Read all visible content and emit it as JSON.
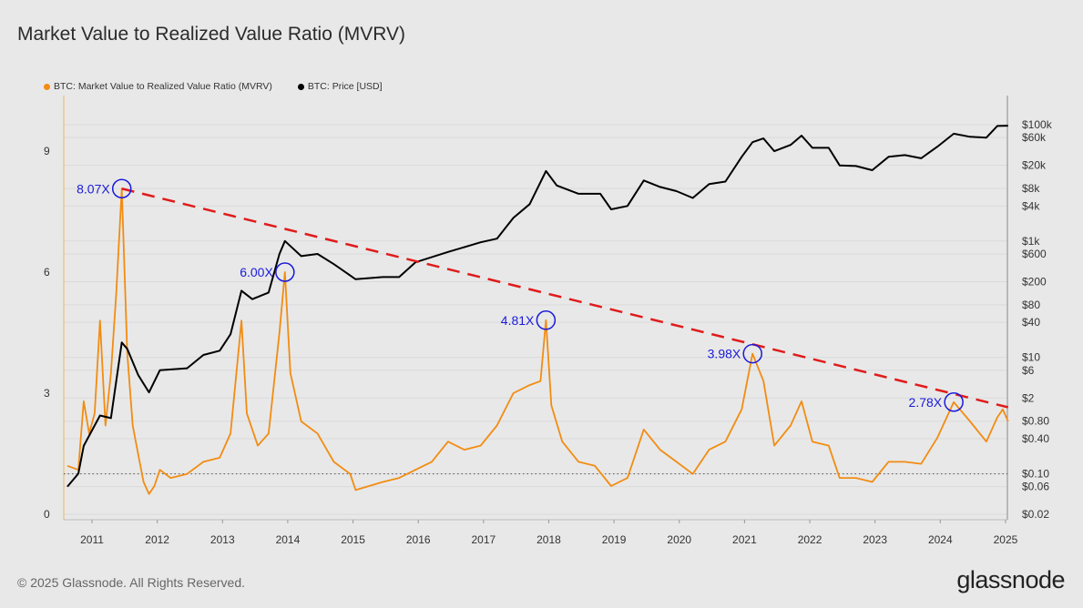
{
  "title": "Market Value to Realized Value Ratio (MVRV)",
  "footer": "© 2025 Glassnode. All Rights Reserved.",
  "logo": "glassnode",
  "chart_data": {
    "type": "line",
    "title": "Market Value to Realized Value Ratio (MVRV)",
    "legend_position": "top-left",
    "grid": true,
    "x_ticks": [
      "2011",
      "2012",
      "2013",
      "2014",
      "2015",
      "2016",
      "2017",
      "2018",
      "2019",
      "2020",
      "2021",
      "2022",
      "2023",
      "2024",
      "2025"
    ],
    "y_left": {
      "ticks": [
        0,
        3,
        6,
        9
      ],
      "range": [
        0,
        10.3
      ],
      "reference_line": 1
    },
    "y_right": {
      "scale": "log",
      "ticks": [
        "$0.02",
        "$0.06",
        "$0.10",
        "$0.40",
        "$0.80",
        "$2",
        "$6",
        "$10",
        "$40",
        "$80",
        "$200",
        "$600",
        "$1k",
        "$4k",
        "$8k",
        "$20k",
        "$60k",
        "$100k"
      ],
      "tick_values": [
        0.02,
        0.06,
        0.1,
        0.4,
        0.8,
        2,
        6,
        10,
        40,
        80,
        200,
        600,
        1000,
        4000,
        8000,
        20000,
        60000,
        100000
      ]
    },
    "series": [
      {
        "name": "BTC: Market Value to Realized Value Ratio (MVRV)",
        "color": "#f28c12",
        "axis": "left",
        "x": [
          "2010-08",
          "2010-10",
          "2010-11",
          "2010-12",
          "2011-01",
          "2011-02",
          "2011-03",
          "2011-04",
          "2011-05",
          "2011-06",
          "2011-07",
          "2011-08",
          "2011-09",
          "2011-10",
          "2011-11",
          "2011-12",
          "2012-01",
          "2012-03",
          "2012-06",
          "2012-09",
          "2012-12",
          "2013-02",
          "2013-04",
          "2013-05",
          "2013-07",
          "2013-09",
          "2013-11",
          "2013-12",
          "2014-01",
          "2014-03",
          "2014-06",
          "2014-09",
          "2014-12",
          "2015-01",
          "2015-06",
          "2015-09",
          "2015-12",
          "2016-03",
          "2016-06",
          "2016-09",
          "2016-12",
          "2017-03",
          "2017-06",
          "2017-09",
          "2017-11",
          "2017-12",
          "2018-01",
          "2018-03",
          "2018-06",
          "2018-09",
          "2018-12",
          "2019-03",
          "2019-06",
          "2019-09",
          "2019-12",
          "2020-03",
          "2020-06",
          "2020-09",
          "2020-12",
          "2021-02",
          "2021-04",
          "2021-06",
          "2021-09",
          "2021-11",
          "2022-01",
          "2022-04",
          "2022-06",
          "2022-09",
          "2022-12",
          "2023-03",
          "2023-06",
          "2023-09",
          "2023-12",
          "2024-03",
          "2024-06",
          "2024-09",
          "2024-11",
          "2024-12",
          "2025-01"
        ],
        "values": [
          1.2,
          1.1,
          2.8,
          2.0,
          2.5,
          4.8,
          2.2,
          3.5,
          5.5,
          8.07,
          4.0,
          2.2,
          1.5,
          0.8,
          0.5,
          0.7,
          1.1,
          0.9,
          1.0,
          1.3,
          1.4,
          2.0,
          4.8,
          2.5,
          1.7,
          2.0,
          4.5,
          6.0,
          3.5,
          2.3,
          2.0,
          1.3,
          1.0,
          0.6,
          0.8,
          0.9,
          1.1,
          1.3,
          1.8,
          1.6,
          1.7,
          2.2,
          3.0,
          3.2,
          3.3,
          4.81,
          2.7,
          1.8,
          1.3,
          1.2,
          0.7,
          0.9,
          2.1,
          1.6,
          1.3,
          1.0,
          1.6,
          1.8,
          2.6,
          3.98,
          3.3,
          1.7,
          2.2,
          2.8,
          1.8,
          1.7,
          0.9,
          0.9,
          0.8,
          1.3,
          1.3,
          1.25,
          1.9,
          2.78,
          2.3,
          1.8,
          2.4,
          2.6,
          2.3
        ]
      },
      {
        "name": "BTC: Price [USD]",
        "color": "#000000",
        "axis": "right",
        "x": [
          "2010-08",
          "2010-10",
          "2010-11",
          "2011-02",
          "2011-04",
          "2011-06",
          "2011-07",
          "2011-09",
          "2011-11",
          "2012-01",
          "2012-06",
          "2012-09",
          "2012-12",
          "2013-02",
          "2013-04",
          "2013-06",
          "2013-09",
          "2013-11",
          "2013-12",
          "2014-03",
          "2014-06",
          "2014-09",
          "2015-01",
          "2015-06",
          "2015-09",
          "2015-12",
          "2016-06",
          "2016-12",
          "2017-03",
          "2017-06",
          "2017-09",
          "2017-12",
          "2018-02",
          "2018-06",
          "2018-10",
          "2018-12",
          "2019-03",
          "2019-06",
          "2019-09",
          "2019-12",
          "2020-03",
          "2020-06",
          "2020-09",
          "2020-12",
          "2021-02",
          "2021-04",
          "2021-06",
          "2021-09",
          "2021-11",
          "2022-01",
          "2022-04",
          "2022-06",
          "2022-09",
          "2022-12",
          "2023-03",
          "2023-06",
          "2023-09",
          "2023-12",
          "2024-03",
          "2024-06",
          "2024-09",
          "2024-11",
          "2025-01"
        ],
        "values": [
          0.06,
          0.1,
          0.3,
          1.0,
          0.9,
          18,
          14,
          5,
          2.5,
          6,
          6.5,
          11,
          13,
          25,
          140,
          100,
          130,
          600,
          1000,
          550,
          600,
          400,
          220,
          240,
          240,
          430,
          650,
          950,
          1100,
          2500,
          4300,
          16000,
          9000,
          6500,
          6500,
          3500,
          4000,
          11000,
          8500,
          7200,
          5500,
          9500,
          10500,
          28000,
          50000,
          58000,
          35000,
          45000,
          65000,
          40000,
          40000,
          20000,
          19500,
          16500,
          28000,
          30000,
          26500,
          42000,
          70000,
          62000,
          60000,
          95000,
          96000
        ]
      }
    ],
    "annotations": [
      {
        "label": "8.07X",
        "x": "2011-06",
        "value": 8.07
      },
      {
        "label": "6.00X",
        "x": "2013-12",
        "value": 6.0
      },
      {
        "label": "4.81X",
        "x": "2017-12",
        "value": 4.81
      },
      {
        "label": "3.98X",
        "x": "2021-02",
        "value": 3.98
      },
      {
        "label": "2.78X",
        "x": "2024-03",
        "value": 2.78
      }
    ],
    "trendline": {
      "color": "#e01b1b",
      "style": "dashed",
      "from": {
        "x": "2011-06",
        "value": 8.07
      },
      "to": {
        "x": "2025-01",
        "value": 2.65
      }
    }
  }
}
